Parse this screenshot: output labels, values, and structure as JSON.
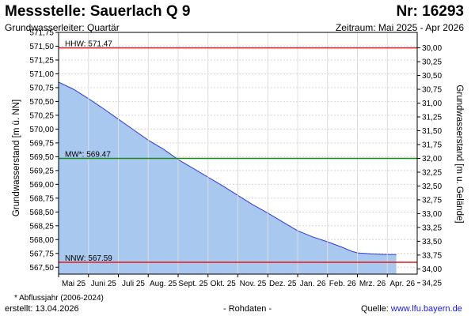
{
  "header": {
    "title": "Messstelle: Sauerlach Q 9",
    "number": "Nr: 16293",
    "subtitle": "Grundwasserleiter: Quartär",
    "period": "Zeitraum: Mai 2025 - Apr 2026"
  },
  "footer": {
    "footnote": "* Abflussjahr (2006-2024)",
    "created": "erstellt:  13.04.2026",
    "rawdata": "- Rohdaten -",
    "source_label": "Quelle: ",
    "source_link": "www.lfu.bayern.de"
  },
  "colors": {
    "area_fill": "#a9c8f0",
    "line": "#2d3ad6",
    "hhw": "#e01b1b",
    "mw": "#1a8a1a",
    "nnw": "#e01b1b",
    "grid": "#d4d4d4"
  },
  "chart_data": {
    "type": "area",
    "ylabel": "Grundwasserstand [m ü. NN]",
    "ylabel_right": "Grundwasserstand [m u. Gelände]",
    "ylim": [
      567.375,
      571.75
    ],
    "y_ticks": [
      "571,75",
      "571,50",
      "571,25",
      "571,00",
      "570,75",
      "570,50",
      "570,25",
      "570,00",
      "569,75",
      "569,50",
      "569,25",
      "569,00",
      "568,75",
      "568,50",
      "568,25",
      "568,00",
      "567,75",
      "567,50"
    ],
    "y_ticks_right": [
      "30,00",
      "30,25",
      "30,50",
      "30,75",
      "31,00",
      "31,25",
      "31,50",
      "31,75",
      "32,00",
      "32,25",
      "32,50",
      "32,75",
      "33,00",
      "33,25",
      "33,50",
      "33,75",
      "34,00",
      "34,25"
    ],
    "y_right_values": [
      30.0,
      30.25,
      30.5,
      30.75,
      31.0,
      31.25,
      31.5,
      31.75,
      32.0,
      32.25,
      32.5,
      32.75,
      33.0,
      33.25,
      33.5,
      33.75,
      34.0,
      34.25
    ],
    "right_axis_offset": 601.47,
    "x_ticks": [
      "Mai 25",
      "Juni 25",
      "Juli 25",
      "Aug. 25",
      "Sept. 25",
      "Okt. 25",
      "Nov. 25",
      "Dez. 25",
      "Jan. 26",
      "Feb. 26",
      "Mrz. 26",
      "Apr. 26"
    ],
    "x_range": [
      0,
      12
    ],
    "grid": true,
    "series": [
      {
        "values_x": [
          0.0,
          0.5,
          1.0,
          1.5,
          2.0,
          2.5,
          3.0,
          3.5,
          4.0,
          4.5,
          5.0,
          5.5,
          6.0,
          6.5,
          7.0,
          7.5,
          8.0,
          8.5,
          9.0,
          9.5,
          9.8,
          10.0,
          10.5,
          11.0,
          11.3
        ],
        "values_y": [
          570.85,
          570.72,
          570.55,
          570.37,
          570.18,
          569.99,
          569.8,
          569.64,
          569.45,
          569.29,
          569.13,
          568.97,
          568.8,
          568.63,
          568.48,
          568.32,
          568.16,
          568.05,
          567.96,
          567.86,
          567.79,
          567.76,
          567.74,
          567.73,
          567.73
        ]
      }
    ],
    "reference_lines": [
      {
        "label": "HHW: 571.47",
        "value": 571.47,
        "color_key": "hhw"
      },
      {
        "label": "MW*: 569.47",
        "value": 569.47,
        "color_key": "mw"
      },
      {
        "label": "NNW: 567.59",
        "value": 567.59,
        "color_key": "nnw"
      }
    ]
  }
}
